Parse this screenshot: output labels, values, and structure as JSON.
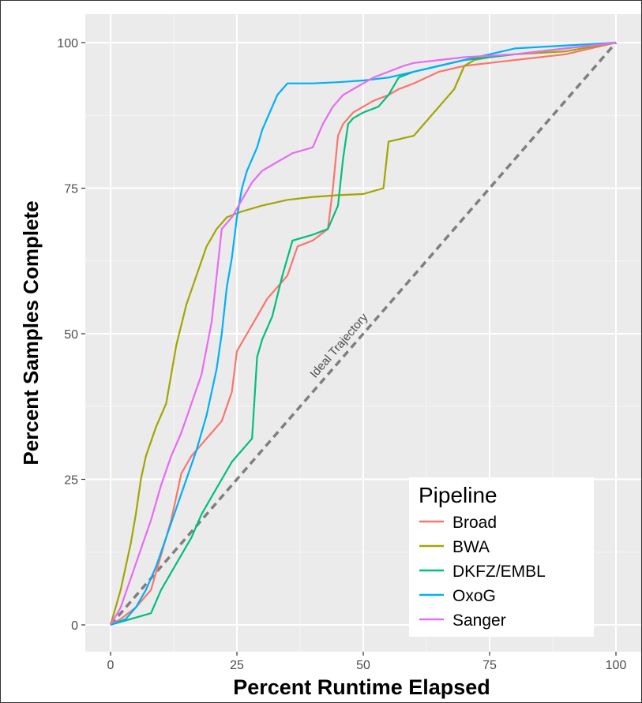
{
  "chart_data": {
    "type": "line",
    "xlabel": "Percent Runtime Elapsed",
    "ylabel": "Percent Samples Complete",
    "xlim": [
      -5,
      105
    ],
    "ylim": [
      -5,
      105
    ],
    "xticks": [
      0,
      25,
      50,
      75,
      100
    ],
    "yticks": [
      0,
      25,
      50,
      75,
      100
    ],
    "grid": true,
    "legend": {
      "title": "Pipeline",
      "position": "bottom-right"
    },
    "reference_line": {
      "label": "Ideal Trajectory",
      "x": [
        0,
        100
      ],
      "y": [
        0,
        100
      ],
      "style": "dashed",
      "color": "#7f7f7f"
    },
    "series": [
      {
        "name": "Broad",
        "color": "#F8766D",
        "x": [
          0,
          2,
          5,
          8,
          10,
          12,
          14,
          16,
          18,
          20,
          22,
          24,
          25,
          27,
          29,
          31,
          33,
          35,
          37,
          40,
          43,
          44,
          45,
          46,
          48,
          52,
          55,
          57,
          60,
          65,
          70,
          80,
          90,
          100
        ],
        "y": [
          0,
          1,
          3,
          6,
          12,
          18,
          26,
          29,
          31,
          33,
          35,
          40,
          47,
          50,
          53,
          56,
          58,
          60,
          65,
          66,
          68,
          75,
          84,
          86,
          88,
          90,
          91,
          92,
          93,
          95,
          96,
          97,
          98,
          100
        ]
      },
      {
        "name": "BWA",
        "color": "#A3A500",
        "x": [
          0,
          1,
          2,
          3,
          4,
          5,
          6,
          7,
          9,
          11,
          13,
          15,
          17,
          19,
          21,
          23,
          26,
          30,
          35,
          40,
          45,
          50,
          54,
          55,
          60,
          63,
          66,
          68,
          70,
          72,
          75,
          80,
          90,
          100
        ],
        "y": [
          0,
          3,
          6,
          10,
          14,
          19,
          25,
          29,
          34,
          38,
          48,
          55,
          60,
          65,
          68,
          70,
          71,
          72,
          73,
          73.5,
          73.8,
          74,
          75,
          83,
          84,
          87,
          90,
          92,
          96,
          97,
          97.5,
          98,
          98.5,
          100
        ]
      },
      {
        "name": "DKFZ/EMBL",
        "color": "#00BF7D",
        "x": [
          0,
          4,
          8,
          10,
          12,
          14,
          16,
          18,
          20,
          22,
          24,
          26,
          28,
          29,
          30,
          32,
          34,
          36,
          38,
          40,
          43,
          45,
          46,
          47,
          48,
          50,
          53,
          55,
          57,
          60,
          65,
          70,
          80,
          90,
          100
        ],
        "y": [
          0,
          1,
          2,
          6,
          9,
          12,
          15,
          19,
          22,
          25,
          28,
          30,
          32,
          46,
          49,
          53,
          60,
          66,
          66.5,
          67,
          68,
          72,
          80,
          86,
          87,
          88,
          89,
          91,
          94,
          95,
          96,
          97,
          98,
          99,
          100
        ]
      },
      {
        "name": "OxoG",
        "color": "#00B0F6",
        "x": [
          0,
          3,
          5,
          7,
          9,
          11,
          13,
          15,
          17,
          19,
          21,
          22,
          23,
          24,
          25,
          26,
          27,
          28,
          29,
          30,
          31,
          32,
          33,
          34,
          35,
          40,
          45,
          50,
          55,
          60,
          65,
          70,
          75,
          80,
          100
        ],
        "y": [
          0,
          1,
          3,
          6,
          10,
          15,
          20,
          25,
          30,
          36,
          44,
          50,
          58,
          63,
          70,
          75,
          78,
          80,
          82,
          85,
          87,
          89,
          91,
          92,
          93,
          93,
          93.2,
          93.5,
          94,
          95,
          96,
          97,
          98,
          99,
          100
        ]
      },
      {
        "name": "Sanger",
        "color": "#E76BF3",
        "x": [
          0,
          2,
          4,
          6,
          8,
          10,
          12,
          14,
          16,
          18,
          20,
          21,
          22,
          24,
          26,
          28,
          30,
          32,
          34,
          36,
          38,
          40,
          42,
          44,
          46,
          48,
          50,
          52,
          55,
          58,
          60,
          65,
          70,
          80,
          90,
          100
        ],
        "y": [
          0,
          3,
          8,
          13,
          18,
          24,
          29,
          33,
          38,
          43,
          52,
          60,
          68,
          70,
          73,
          76,
          78,
          79,
          80,
          81,
          81.5,
          82,
          86,
          89,
          91,
          92,
          93,
          94,
          95,
          96,
          96.5,
          97,
          97.5,
          98,
          99,
          100
        ]
      }
    ]
  }
}
